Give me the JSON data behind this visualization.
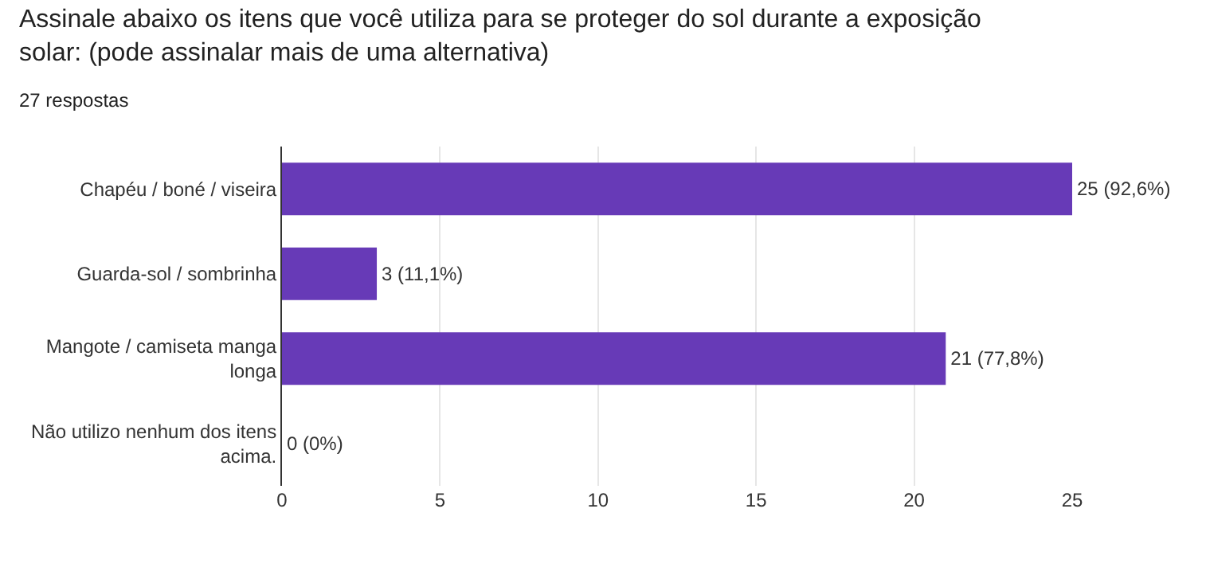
{
  "chart_data": {
    "type": "bar",
    "orientation": "horizontal",
    "title": "Assinale abaixo os itens que você utiliza para se proteger do sol durante a exposição solar: (pode assinalar mais de uma alternativa)",
    "subtitle": "27 respostas",
    "categories": [
      "Chapéu / boné / viseira",
      "Guarda-sol / sombrinha",
      "Mangote / camiseta manga longa",
      "Não utilizo nenhum dos itens acima."
    ],
    "values": [
      25,
      3,
      21,
      0
    ],
    "value_labels": [
      "25 (92,6%)",
      "3 (11,1%)",
      "21 (77,8%)",
      "0 (0%)"
    ],
    "color": "#673ab7",
    "xlim": [
      0,
      25
    ],
    "xticks": [
      0,
      5,
      10,
      15,
      20,
      25
    ],
    "grid": "x",
    "legend": false
  }
}
